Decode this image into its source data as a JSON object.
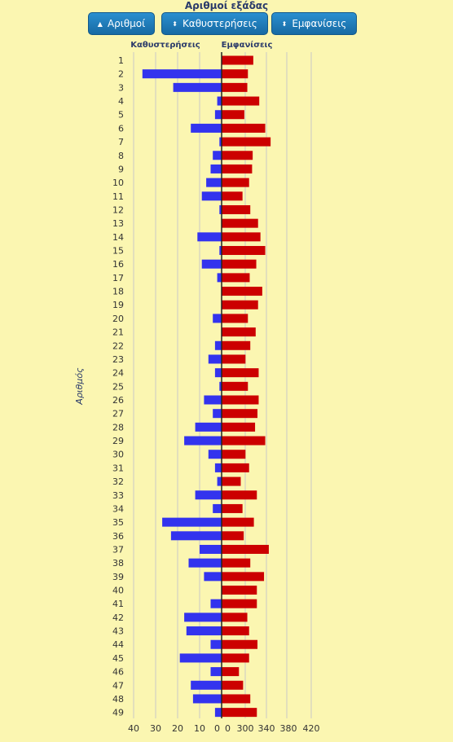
{
  "header": {
    "title": "Αριθμοί εξάδας",
    "buttons": [
      {
        "label": "Αριθμοί",
        "icon": "triangle-up-icon"
      },
      {
        "label": "Καθυστερήσεις",
        "icon": "sort-arrows-icon"
      },
      {
        "label": "Εμφανίσεις",
        "icon": "sort-arrows-icon"
      }
    ]
  },
  "chart_data": {
    "type": "bar",
    "orientation": "horizontal",
    "ylabel": "Αριθμός",
    "categories": [
      "1",
      "2",
      "3",
      "4",
      "5",
      "6",
      "7",
      "8",
      "9",
      "10",
      "11",
      "12",
      "13",
      "14",
      "15",
      "16",
      "17",
      "18",
      "19",
      "20",
      "21",
      "22",
      "23",
      "24",
      "25",
      "26",
      "27",
      "28",
      "29",
      "30",
      "31",
      "32",
      "33",
      "34",
      "35",
      "36",
      "37",
      "38",
      "39",
      "40",
      "41",
      "42",
      "43",
      "44",
      "45",
      "46",
      "47",
      "48",
      "49"
    ],
    "series": [
      {
        "name": "Καθυστερήσεις",
        "color": "#3333ee",
        "values": [
          0,
          36,
          22,
          2,
          3,
          14,
          1,
          4,
          5,
          7,
          9,
          1,
          0,
          11,
          1,
          9,
          2,
          0,
          0,
          4,
          0,
          3,
          6,
          3,
          1,
          8,
          4,
          12,
          17,
          6,
          3,
          2,
          12,
          4,
          27,
          23,
          10,
          15,
          8,
          0,
          5,
          17,
          16,
          5,
          19,
          5,
          14,
          13,
          3
        ],
        "xlim": [
          0,
          40
        ],
        "ticks": [
          40,
          30,
          20,
          10,
          0
        ]
      },
      {
        "name": "Εμφανίσεις",
        "color": "#cc0000",
        "values": [
          323,
          314,
          313,
          333,
          308,
          343,
          352,
          322,
          321,
          316,
          305,
          318,
          331,
          335,
          343,
          328,
          317,
          338,
          331,
          314,
          327,
          318,
          310,
          332,
          314,
          332,
          330,
          326,
          343,
          310,
          316,
          302,
          329,
          305,
          324,
          307,
          349,
          318,
          341,
          329,
          329,
          313,
          316,
          330,
          316,
          299,
          306,
          318,
          329
        ],
        "xlim": [
          270,
          440
        ],
        "ticks": [
          0,
          300,
          340,
          380,
          420
        ]
      }
    ]
  }
}
